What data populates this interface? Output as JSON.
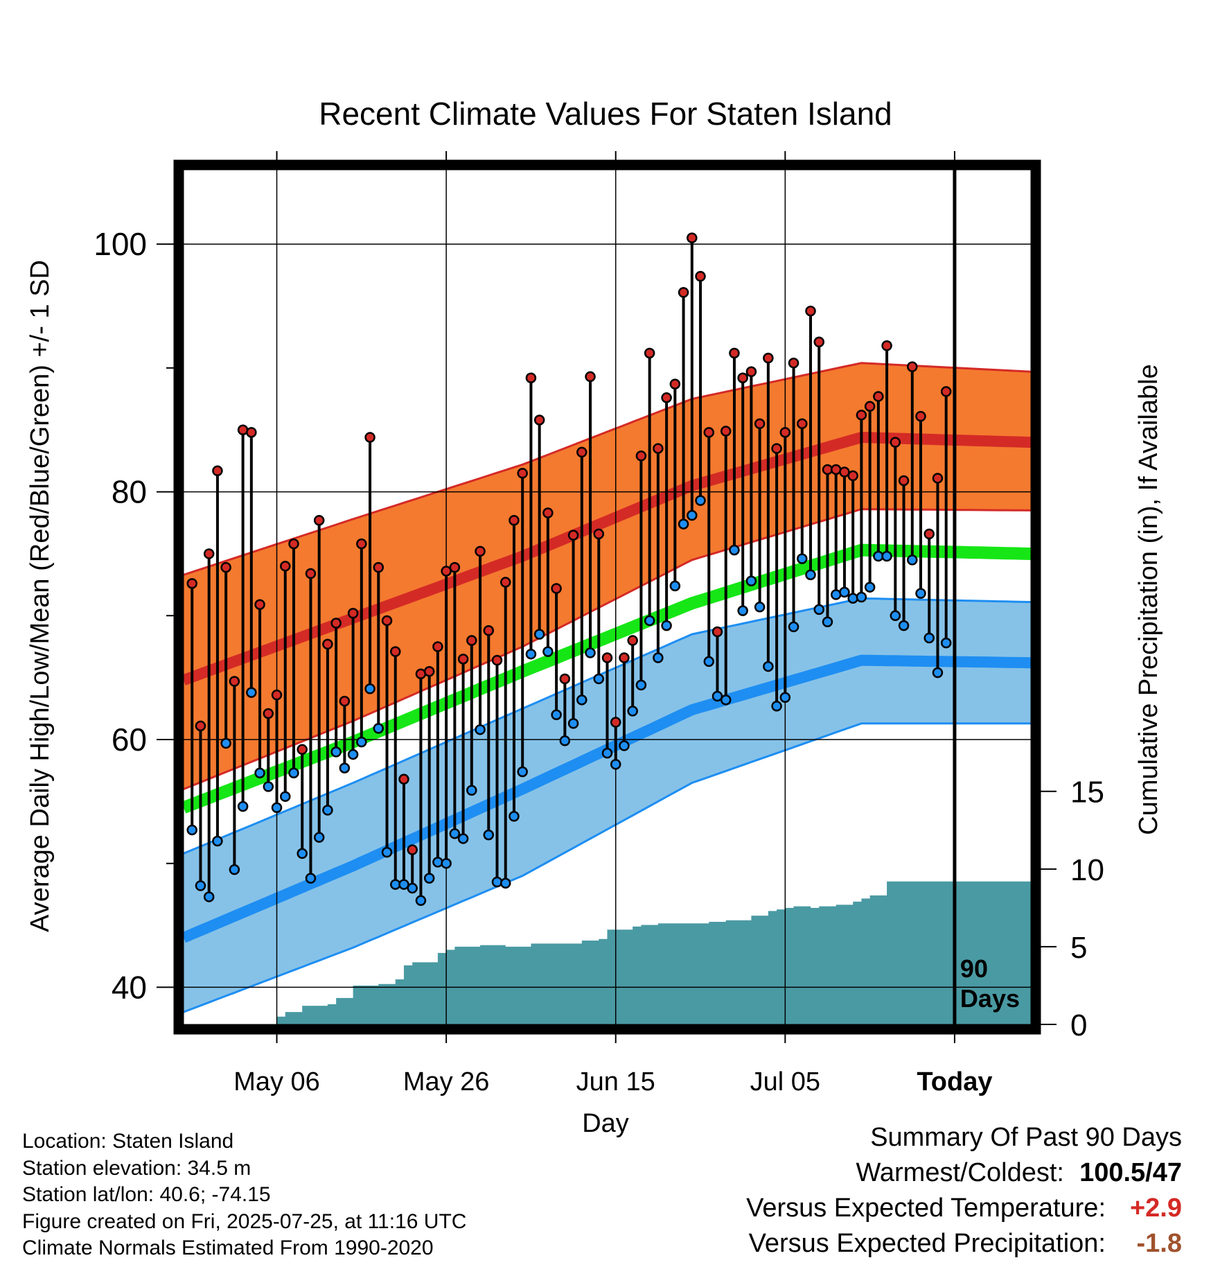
{
  "chart_data": {
    "type": "line",
    "title": "Recent Climate Values For Staten Island",
    "xlabel": "Day",
    "ylabel": "Average Daily High/Low/Mean (Red/Blue/Green) +/- 1 SD",
    "y2label": "Cumulative Precipitation (in), If Available",
    "x_range_days_relative_to_today": [
      -91,
      9
    ],
    "ylim": [
      37,
      106
    ],
    "y2lim": [
      0,
      55
    ],
    "yticks": [
      "40",
      "60",
      "80",
      "100"
    ],
    "y2ticks": [
      "0",
      "5",
      "10",
      "15"
    ],
    "xticks": [
      {
        "label": "May 06",
        "day": -80
      },
      {
        "label": "May 26",
        "day": -60
      },
      {
        "label": "Jun 15",
        "day": -40
      },
      {
        "label": "Jul 05",
        "day": -20
      },
      {
        "label": "Today",
        "day": 0
      }
    ],
    "today_label": "90 Days",
    "grid": true,
    "colors": {
      "high_band": "#f47a2f",
      "high_mean": "#d42a26",
      "low_band": "#86c2e8",
      "low_mean": "#1e8ef2",
      "daily_mean": "#16e616",
      "precip": "#4a9aa3",
      "high_point": "#d42a26",
      "low_point": "#1e8ef2"
    },
    "normals": {
      "days": [
        -91,
        -71,
        -51,
        -31,
        -11,
        9
      ],
      "high_mean": [
        64.8,
        69.8,
        74.8,
        80.5,
        84.4,
        84.0
      ],
      "high_upper": [
        73.3,
        77.8,
        82.2,
        87.5,
        90.4,
        89.7
      ],
      "high_lower": [
        56.0,
        61.5,
        67.5,
        74.5,
        78.6,
        78.5
      ],
      "daily_mean": [
        54.5,
        59.8,
        65.5,
        71.0,
        75.3,
        75.0
      ],
      "low_mean": [
        44.0,
        49.8,
        56.0,
        62.4,
        66.4,
        66.2
      ],
      "low_upper": [
        50.8,
        56.5,
        62.5,
        68.5,
        71.4,
        71.1
      ],
      "low_lower": [
        38.0,
        43.2,
        49.0,
        56.5,
        61.3,
        61.3
      ]
    },
    "daily_observations": {
      "start_day": -90,
      "high": [
        72.6,
        61.1,
        75.0,
        81.7,
        73.9,
        64.7,
        85.0,
        84.8,
        70.9,
        62.1,
        63.6,
        74.0,
        75.8,
        59.2,
        73.4,
        77.7,
        67.7,
        69.4,
        63.1,
        70.2,
        75.8,
        84.4,
        73.9,
        69.6,
        67.1,
        56.8,
        51.1,
        65.3,
        65.5,
        67.5,
        73.6,
        73.9,
        66.5,
        68.0,
        75.2,
        68.8,
        66.4,
        72.7,
        77.7,
        81.5,
        89.2,
        85.8,
        78.3,
        72.2,
        64.9,
        76.5,
        83.2,
        89.3,
        76.6,
        66.6,
        61.4,
        66.6,
        68.0,
        82.9,
        91.2,
        83.5,
        87.6,
        88.7,
        96.1,
        100.5,
        97.4,
        84.8,
        68.7,
        84.9,
        91.2,
        89.2,
        89.7,
        85.5,
        90.8,
        83.5,
        84.8,
        90.4,
        85.5,
        94.6,
        92.1,
        81.8,
        81.8,
        81.6,
        81.3,
        86.2,
        86.9,
        87.7,
        91.8,
        84.0,
        80.9,
        90.1,
        86.1,
        76.6,
        81.1,
        88.1
      ],
      "low": [
        52.7,
        48.2,
        47.3,
        51.8,
        59.7,
        49.5,
        54.6,
        63.8,
        57.3,
        56.2,
        54.5,
        55.4,
        57.3,
        50.8,
        48.8,
        52.1,
        54.3,
        59.0,
        57.7,
        58.8,
        59.8,
        64.1,
        60.9,
        50.9,
        48.3,
        48.3,
        48.0,
        47.0,
        48.8,
        50.1,
        50.0,
        52.4,
        52.0,
        55.9,
        60.8,
        52.3,
        48.5,
        48.4,
        53.8,
        57.4,
        66.9,
        68.5,
        67.1,
        62.0,
        59.9,
        61.3,
        63.2,
        67.0,
        64.9,
        58.9,
        58.0,
        59.5,
        62.3,
        64.4,
        69.6,
        66.6,
        69.2,
        72.4,
        77.4,
        78.1,
        79.3,
        66.3,
        63.5,
        63.2,
        75.3,
        70.4,
        72.8,
        70.7,
        65.9,
        62.7,
        63.4,
        69.1,
        74.6,
        73.3,
        70.5,
        69.5,
        71.7,
        71.9,
        71.4,
        71.5,
        72.3,
        74.8,
        74.8,
        70.0,
        69.2,
        74.5,
        71.8,
        68.2,
        65.4,
        67.8
      ]
    },
    "precipitation_cumulative": {
      "days": [
        -82,
        -80,
        -79,
        -77,
        -74,
        -73,
        -71,
        -68,
        -66,
        -65,
        -64,
        -61,
        -60,
        -59,
        -56,
        -55,
        -53,
        -50,
        -44,
        -42,
        -41,
        -38,
        -37,
        -35,
        -33,
        -31,
        -29,
        -27,
        -24,
        -22,
        -21,
        -20,
        -19,
        -18,
        -17,
        -16,
        -14,
        -12,
        -11,
        -10,
        -8,
        9
      ],
      "values": [
        0.0,
        0.5,
        0.8,
        1.2,
        1.3,
        1.7,
        2.5,
        2.6,
        2.9,
        3.8,
        4.0,
        4.6,
        4.8,
        5.0,
        5.1,
        5.1,
        5.0,
        5.2,
        5.4,
        5.5,
        6.1,
        6.3,
        6.4,
        6.5,
        6.5,
        6.5,
        6.6,
        6.7,
        7.0,
        7.3,
        7.4,
        7.5,
        7.6,
        7.6,
        7.5,
        7.6,
        7.7,
        7.9,
        8.1,
        8.3,
        9.2,
        9.3
      ]
    }
  },
  "info": {
    "location": "Location: Staten Island",
    "elevation": "Station elevation: 34.5 m",
    "latlon": "Station lat/lon: 40.6; -74.15",
    "created": "Figure created on Fri, 2025-07-25, at 11:16 UTC",
    "normals": "Climate Normals Estimated From 1990-2020"
  },
  "summary": {
    "heading": "Summary Of Past 90 Days",
    "warmest_coldest_label": "Warmest/Coldest:",
    "warmest_coldest_value": "100.5/47",
    "temp_label": "Versus Expected Temperature:",
    "temp_value": "+2.9",
    "temp_color": "#d42a26",
    "precip_label": "Versus Expected Precipitation:",
    "precip_value": "-1.8",
    "precip_color": "#a0522d"
  }
}
